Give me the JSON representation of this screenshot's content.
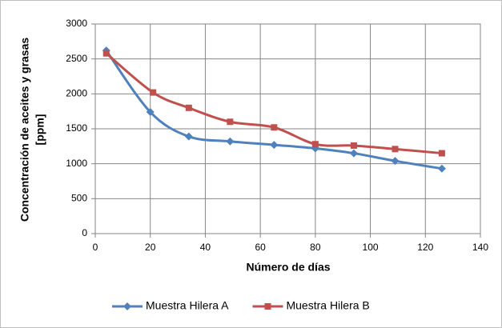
{
  "chart_data": {
    "type": "line",
    "ylabel": [
      "Concentración  de aceites  y grasas",
      "[ppm]"
    ],
    "xlabel": "Número de días",
    "series": [
      {
        "name": "Muestra Hilera A",
        "color": "#4f81bd",
        "marker": "diamond",
        "x": [
          4,
          20,
          34,
          49,
          65,
          80,
          94,
          109,
          126
        ],
        "values": [
          2620,
          1740,
          1390,
          1320,
          1270,
          1220,
          1150,
          1040,
          930
        ]
      },
      {
        "name": "Muestra Hilera B",
        "color": "#c0504d",
        "marker": "square",
        "x": [
          4,
          21,
          34,
          49,
          65,
          80,
          94,
          109,
          126
        ],
        "values": [
          2580,
          2020,
          1800,
          1600,
          1520,
          1280,
          1260,
          1210,
          1150
        ]
      }
    ],
    "xlim": [
      0,
      140
    ],
    "xticks": [
      0,
      20,
      40,
      60,
      80,
      100,
      120,
      140
    ],
    "ylim": [
      0,
      3000
    ],
    "yticks": [
      0,
      500,
      1000,
      1500,
      2000,
      2500,
      3000
    ],
    "grid": true,
    "legend": "bottom"
  }
}
